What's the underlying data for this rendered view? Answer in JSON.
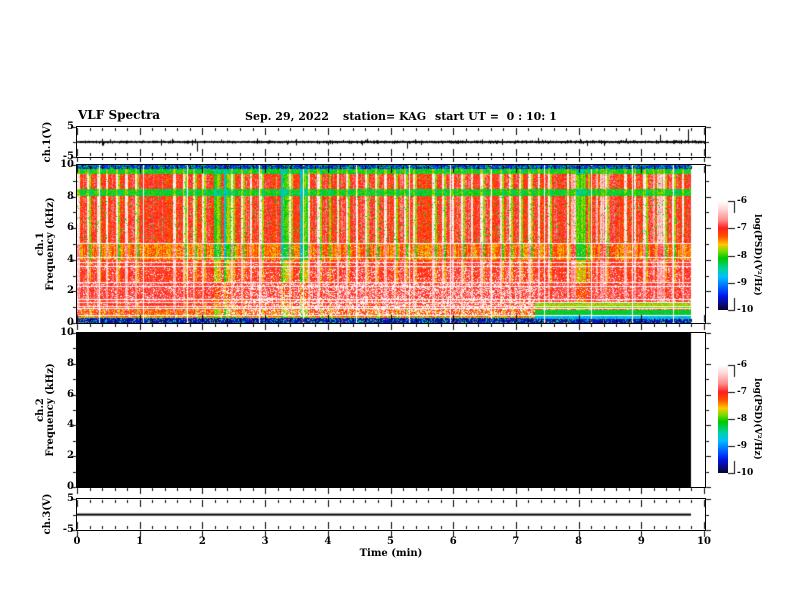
{
  "header": {
    "title": "VLF Spectra",
    "date": "Sep. 29, 2022",
    "station": "station= KAG",
    "start_ut": "start UT =  0 : 10: 1"
  },
  "xaxis": {
    "label": "Time (min)",
    "min": 0,
    "max": 10,
    "major_ticks": [
      0,
      1,
      2,
      3,
      4,
      5,
      6,
      7,
      8,
      9,
      10
    ],
    "minor_step": 0.2
  },
  "panels": [
    {
      "id": "ch1-waveform",
      "ylabel": "ch.1(V)",
      "ylim": [
        -5,
        5
      ],
      "ytick_labels": [
        5,
        -5
      ],
      "yticks_unlabeled": [
        0
      ]
    },
    {
      "id": "ch1-spectrogram",
      "ylabel_line1": "ch.1",
      "ylabel_line2": "Frequency (kHz)",
      "ylim": [
        0,
        10
      ],
      "ytick_labels": [
        10,
        8,
        6,
        4,
        2,
        0
      ],
      "yticks_unlabeled": [
        9,
        7,
        5,
        3,
        1
      ]
    },
    {
      "id": "ch2-spectrogram",
      "ylabel_line1": "ch.2",
      "ylabel_line2": "Frequency (kHz)",
      "ylim": [
        0,
        10
      ],
      "ytick_labels": [
        10,
        8,
        6,
        4,
        2,
        0
      ],
      "yticks_unlabeled": [
        9,
        7,
        5,
        3,
        1
      ]
    },
    {
      "id": "ch3-waveform",
      "ylabel": "ch.3(V)",
      "ylim": [
        -5,
        5
      ],
      "ytick_labels": [
        5,
        -5
      ],
      "yticks_unlabeled": [
        0
      ]
    }
  ],
  "colorbars": [
    {
      "label": "log(PSD)(V²/Hz)",
      "tick_labels": [
        -6,
        -7,
        -8,
        -9,
        -10
      ],
      "range": [
        -6,
        -10
      ]
    },
    {
      "label": "log(PSD)(V²/Hz)",
      "tick_labels": [
        -6,
        -7,
        -8,
        -9,
        -10
      ],
      "range": [
        -6,
        -10
      ]
    }
  ],
  "colormap_stops": [
    [
      -6.0,
      "#ffffff"
    ],
    [
      -6.3,
      "#ffd7d7"
    ],
    [
      -6.7,
      "#ff8c8c"
    ],
    [
      -7.0,
      "#ff1e1e"
    ],
    [
      -7.3,
      "#ff5000"
    ],
    [
      -7.6,
      "#ffc800"
    ],
    [
      -7.85,
      "#78dc00"
    ],
    [
      -8.1,
      "#00c800"
    ],
    [
      -8.5,
      "#00d2a0"
    ],
    [
      -8.8,
      "#00beff"
    ],
    [
      -9.2,
      "#005aff"
    ],
    [
      -9.5,
      "#0014e6"
    ],
    [
      -9.8,
      "#0a0a78"
    ],
    [
      -10.0,
      "#050528"
    ]
  ],
  "chart_data": {
    "type": "heatmap",
    "title": "VLF Spectra",
    "date": "Sep. 29, 2022",
    "station": "KAG",
    "start_ut": "0:10:1",
    "xlabel": "Time (min)",
    "xlim": [
      0,
      10
    ],
    "data_end_min": 9.8,
    "panels": [
      {
        "name": "ch.1(V)",
        "type": "line",
        "ylim": [
          -5,
          5
        ],
        "baseline_v": 0,
        "noise_amp_v": 0.3,
        "spikes": [
          {
            "t": 0.42,
            "v": -1.2
          },
          {
            "t": 1.91,
            "v": -3.2
          },
          {
            "t": 2.3,
            "v": 0.8
          },
          {
            "t": 3.35,
            "v": -0.9
          },
          {
            "t": 4.0,
            "v": -1.1
          },
          {
            "t": 5.26,
            "v": -2.2
          },
          {
            "t": 6.2,
            "v": 1.0
          },
          {
            "t": 7.35,
            "v": 1.4
          },
          {
            "t": 8.4,
            "v": -1.3
          },
          {
            "t": 8.75,
            "v": 1.2
          },
          {
            "t": 9.3,
            "v": 2.4
          },
          {
            "t": 9.75,
            "v": 4.2
          }
        ]
      },
      {
        "name": "ch.1 spectrogram",
        "type": "spectrogram",
        "ylabel": "Frequency (kHz)",
        "ylim": [
          0,
          10
        ],
        "zlabel": "log(PSD)(V²/Hz)",
        "zlim": [
          -10,
          -6
        ],
        "column_period_min": 0.153,
        "bands": [
          {
            "f_lo": 9.75,
            "f_hi": 10.0,
            "level": -9.4,
            "col": 0.15,
            "speck_p": 0.25,
            "speck_v": -8.2
          },
          {
            "f_lo": 9.45,
            "f_hi": 9.75,
            "level": -8.1,
            "col": 0.35,
            "speck_p": 0.0,
            "speck_v": 0
          },
          {
            "f_lo": 8.45,
            "f_hi": 9.45,
            "level": -7.0,
            "col": 1.0,
            "speck_p": 0.02,
            "speck_v": -8.1
          },
          {
            "f_lo": 8.05,
            "f_hi": 8.45,
            "level": -8.15,
            "col": 0.35,
            "speck_p": 0.0,
            "speck_v": 0
          },
          {
            "f_lo": 5.0,
            "f_hi": 8.05,
            "level": -7.0,
            "col": 1.0,
            "speck_p": 0.05,
            "speck_v": -8.1
          },
          {
            "f_lo": 4.0,
            "f_hi": 5.0,
            "level": -7.35,
            "col": 0.85,
            "speck_p": 0.04,
            "speck_v": -6.3
          },
          {
            "f_lo": 2.6,
            "f_hi": 4.0,
            "level": -7.0,
            "col": 0.7,
            "speck_p": 0.08,
            "speck_v": -6.2
          },
          {
            "f_lo": 1.4,
            "f_hi": 2.6,
            "level": -6.9,
            "col": 0.35,
            "speck_p": 0.12,
            "speck_v": -6.15
          },
          {
            "f_lo": 0.9,
            "f_hi": 1.4,
            "level": -7.0,
            "col": 0.45,
            "speck_p": 0.08,
            "speck_v": -6.2
          },
          {
            "f_lo": 0.4,
            "f_hi": 0.9,
            "level": -7.3,
            "col": 0.45,
            "speck_p": 0.12,
            "speck_v": -6.3
          },
          {
            "f_lo": 0.3,
            "f_hi": 0.4,
            "level": -7.7,
            "col": 0.3,
            "speck_p": 0.1,
            "speck_v": -8.5
          },
          {
            "f_lo": 0.0,
            "f_hi": 0.3,
            "level": -9.6,
            "col": 0.0,
            "speck_p": 0.2,
            "speck_v": -8.4
          }
        ],
        "white_hlines_khz": [
          5.05,
          4.15,
          3.85,
          3.6,
          2.6,
          2.35,
          1.5,
          1.3,
          1.1,
          0.95,
          0.5
        ],
        "white_vlines_min": [
          0.35,
          1.05,
          1.75,
          2.9,
          3.6,
          4.45,
          5.3,
          5.95,
          6.6,
          7.45,
          8.2,
          8.85,
          9.5
        ],
        "heavy_speckle_region": {
          "t": [
            2.3,
            7.3
          ],
          "f": [
            0.5,
            2.6
          ],
          "p": 0.35
        },
        "moderate_speckle_region": {
          "t": [
            2.3,
            7.3
          ],
          "f": [
            2.6,
            3.4
          ],
          "p": 0.15
        },
        "right_quiet_rows": [
          {
            "t_start": 7.3,
            "f": [
              0.9,
              1.35
            ],
            "level": -7.9
          },
          {
            "t_start": 7.3,
            "f": [
              0.5,
              0.8
            ],
            "level": -8.2
          },
          {
            "t_start": 7.3,
            "f": [
              0.25,
              0.45
            ],
            "level": -8.8
          }
        ]
      },
      {
        "name": "ch.2 spectrogram",
        "type": "spectrogram",
        "ylim": [
          0,
          10
        ],
        "no_signal": true,
        "fill_level": -10
      },
      {
        "name": "ch.3(V)",
        "type": "line",
        "ylim": [
          -5,
          5
        ],
        "constant_v": 0
      }
    ]
  }
}
